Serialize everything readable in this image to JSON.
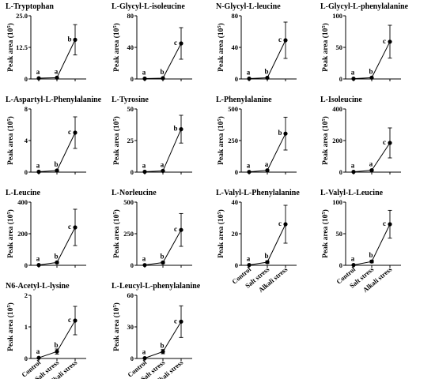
{
  "ylabel_main": "Peak area (10",
  "ylabel_sup": "5",
  "ylabel_close": ")",
  "chart_data": [
    {
      "type": "line",
      "title": "L-Tryptophan",
      "categories": [
        "Control",
        "Salt stress",
        "Alkali stress"
      ],
      "ylim": [
        0,
        25
      ],
      "yticks": [
        0,
        12.5,
        25
      ],
      "ytick_labels": [
        "0",
        "12.5",
        "25.0"
      ],
      "values": [
        0.3,
        0.5,
        15.5
      ],
      "errors": [
        0.1,
        0.2,
        6
      ],
      "letters": [
        "a",
        "a",
        "b"
      ],
      "show_xticks": false
    },
    {
      "type": "line",
      "title": "L-Glycyl-L-isoleucine",
      "categories": [
        "Control",
        "Salt stress",
        "Alkali stress"
      ],
      "ylim": [
        0,
        80
      ],
      "yticks": [
        0,
        40,
        80
      ],
      "ytick_labels": [
        "0",
        "40",
        "80"
      ],
      "values": [
        0.5,
        1,
        45
      ],
      "errors": [
        0.2,
        0.4,
        20
      ],
      "letters": [
        "a",
        "b",
        "c"
      ],
      "show_xticks": false
    },
    {
      "type": "line",
      "title": "N-Glycyl-L-leucine",
      "categories": [
        "Control",
        "Salt stress",
        "Alkali stress"
      ],
      "ylim": [
        0,
        80
      ],
      "yticks": [
        0,
        40,
        80
      ],
      "ytick_labels": [
        "0",
        "40",
        "80"
      ],
      "values": [
        0.5,
        1.5,
        49
      ],
      "errors": [
        0.2,
        0.5,
        23
      ],
      "letters": [
        "a",
        "b",
        "c"
      ],
      "show_xticks": false
    },
    {
      "type": "line",
      "title": "L-Glycyl-L-phenylalanine",
      "categories": [
        "Control",
        "Salt stress",
        "Alkali stress"
      ],
      "ylim": [
        0,
        100
      ],
      "yticks": [
        0,
        50,
        100
      ],
      "ytick_labels": [
        "0",
        "50",
        "100"
      ],
      "values": [
        0.5,
        2,
        59
      ],
      "errors": [
        0.2,
        0.8,
        26
      ],
      "letters": [
        "a",
        "b",
        "c"
      ],
      "show_xticks": false
    },
    {
      "type": "line",
      "title": "L-Aspartyl-L-Phenylalanine",
      "categories": [
        "Control",
        "Salt stress",
        "Alkali stress"
      ],
      "ylim": [
        0,
        8
      ],
      "yticks": [
        0,
        4,
        8
      ],
      "ytick_labels": [
        "0",
        "4",
        "8"
      ],
      "values": [
        0.05,
        0.2,
        5
      ],
      "errors": [
        0.02,
        0.08,
        2
      ],
      "letters": [
        "a",
        "b",
        "c"
      ],
      "show_xticks": false
    },
    {
      "type": "line",
      "title": "L-Tyrosine",
      "categories": [
        "Control",
        "Salt stress",
        "Alkali stress"
      ],
      "ylim": [
        0,
        50
      ],
      "yticks": [
        0,
        25,
        50
      ],
      "ytick_labels": [
        "0",
        "25",
        "50"
      ],
      "values": [
        0.3,
        1,
        34
      ],
      "errors": [
        0.1,
        0.4,
        11
      ],
      "letters": [
        "a",
        "a",
        "b"
      ],
      "show_xticks": false
    },
    {
      "type": "line",
      "title": "L-Phenylalanine",
      "categories": [
        "Control",
        "Salt stress",
        "Alkali stress"
      ],
      "ylim": [
        0,
        500
      ],
      "yticks": [
        0,
        250,
        500
      ],
      "ytick_labels": [
        "0",
        "250",
        "500"
      ],
      "values": [
        2,
        14,
        305
      ],
      "errors": [
        1,
        5,
        130
      ],
      "letters": [
        "a",
        "a",
        "b"
      ],
      "show_xticks": false
    },
    {
      "type": "line",
      "title": "L-Isoleucine",
      "categories": [
        "Control",
        "Salt stress",
        "Alkali stress"
      ],
      "ylim": [
        0,
        400
      ],
      "yticks": [
        0,
        200,
        400
      ],
      "ytick_labels": [
        "0",
        "200",
        "400"
      ],
      "values": [
        2,
        12,
        185
      ],
      "errors": [
        1,
        5,
        95
      ],
      "letters": [
        "a",
        "a",
        "c"
      ],
      "show_xticks": false
    },
    {
      "type": "line",
      "title": "L-Leucine",
      "categories": [
        "Control",
        "Salt stress",
        "Alkali stress"
      ],
      "ylim": [
        0,
        400
      ],
      "yticks": [
        0,
        200,
        400
      ],
      "ytick_labels": [
        "0",
        "200",
        "400"
      ],
      "values": [
        2,
        18,
        240
      ],
      "errors": [
        1,
        6,
        115
      ],
      "letters": [
        "a",
        "b",
        "c"
      ],
      "show_xticks": false
    },
    {
      "type": "line",
      "title": "L-Norleucine",
      "categories": [
        "Control",
        "Salt stress",
        "Alkali stress"
      ],
      "ylim": [
        0,
        500
      ],
      "yticks": [
        0,
        250,
        500
      ],
      "ytick_labels": [
        "0",
        "250",
        "500"
      ],
      "values": [
        2,
        22,
        280
      ],
      "errors": [
        1,
        8,
        130
      ],
      "letters": [
        "a",
        "b",
        "c"
      ],
      "show_xticks": false
    },
    {
      "type": "line",
      "title": "L-Valyl-L-Phenylalanine",
      "categories": [
        "Control",
        "Salt stress",
        "Alkali stress"
      ],
      "ylim": [
        0,
        40
      ],
      "yticks": [
        0,
        20,
        40
      ],
      "ytick_labels": [
        "0",
        "20",
        "40"
      ],
      "values": [
        0.2,
        2,
        26
      ],
      "errors": [
        0.1,
        0.8,
        12
      ],
      "letters": [
        "a",
        "b",
        "c"
      ],
      "show_xticks": true
    },
    {
      "type": "line",
      "title": "L-Valyl-L-Leucine",
      "categories": [
        "Control",
        "Salt stress",
        "Alkali stress"
      ],
      "ylim": [
        0,
        100
      ],
      "yticks": [
        0,
        50,
        100
      ],
      "ytick_labels": [
        "0",
        "50",
        "100"
      ],
      "values": [
        0.5,
        6,
        65
      ],
      "errors": [
        0.2,
        2,
        22
      ],
      "letters": [
        "a",
        "b",
        "c"
      ],
      "show_xticks": true
    },
    {
      "type": "line",
      "title": "N6-Acetyl-L-lysine",
      "categories": [
        "Control",
        "Salt stress",
        "Alkali stress"
      ],
      "ylim": [
        0,
        2
      ],
      "yticks": [
        0,
        1,
        2
      ],
      "ytick_labels": [
        "0",
        "1",
        "2"
      ],
      "values": [
        0.02,
        0.22,
        1.2
      ],
      "errors": [
        0.01,
        0.08,
        0.45
      ],
      "letters": [
        "a",
        "b",
        "c"
      ],
      "show_xticks": true
    },
    {
      "type": "line",
      "title": "L-Leucyl-L-phenylalanine",
      "categories": [
        "Control",
        "Salt stress",
        "Alkali stress"
      ],
      "ylim": [
        0,
        60
      ],
      "yticks": [
        0,
        30,
        60
      ],
      "ytick_labels": [
        "0",
        "30",
        "60"
      ],
      "values": [
        0.3,
        6.5,
        35
      ],
      "errors": [
        0.1,
        2,
        15
      ],
      "letters": [
        "a",
        "b",
        "c"
      ],
      "show_xticks": true
    }
  ]
}
